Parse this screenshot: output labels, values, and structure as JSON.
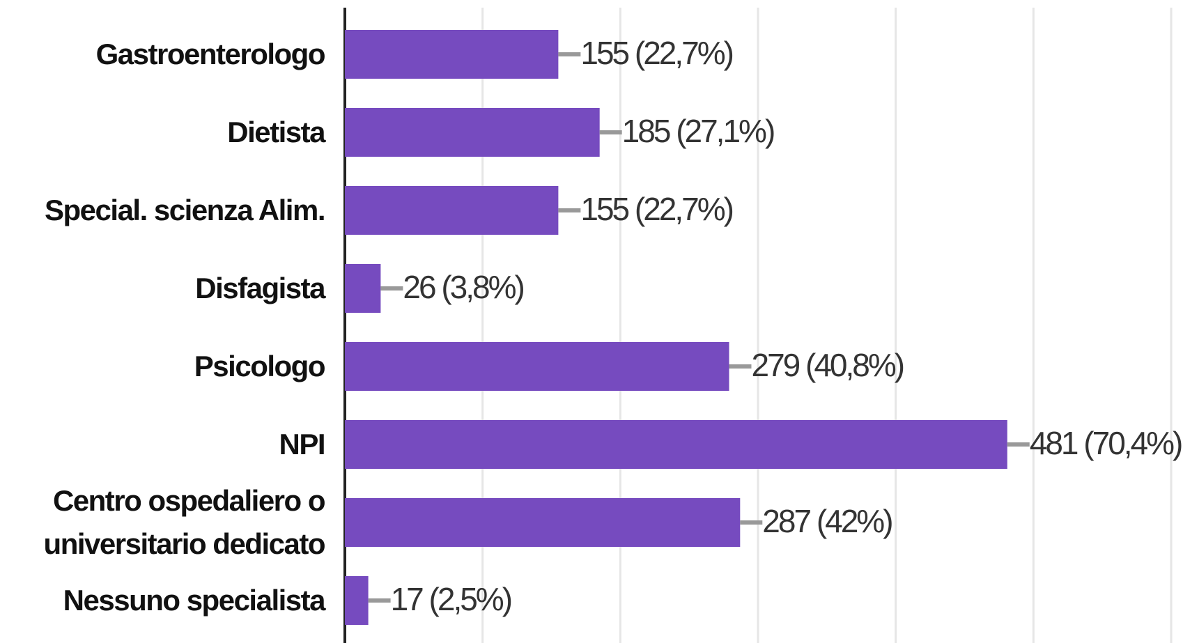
{
  "chart_data": {
    "type": "bar",
    "orientation": "horizontal",
    "categories": [
      "Gastroenterologo",
      "Dietista",
      "Special. scienza Alim.",
      "Disfagista",
      "Psicologo",
      "NPI",
      "Centro ospedaliero o universitario dedicato",
      "Nessuno specialista"
    ],
    "values": [
      155,
      185,
      155,
      26,
      279,
      481,
      287,
      17
    ],
    "value_labels": [
      "155 (22,7%)",
      "185 (27,1%)",
      "155 (22,7%)",
      "26 (3,8%)",
      "279 (40,8%)",
      "481 (70,4%)",
      "287 (42%)",
      "17 (2,5%)"
    ],
    "color": "#764bbf",
    "xlim": [
      0,
      600
    ],
    "xticks": [
      0,
      100,
      200,
      300,
      400,
      500,
      600
    ],
    "grid": true
  }
}
